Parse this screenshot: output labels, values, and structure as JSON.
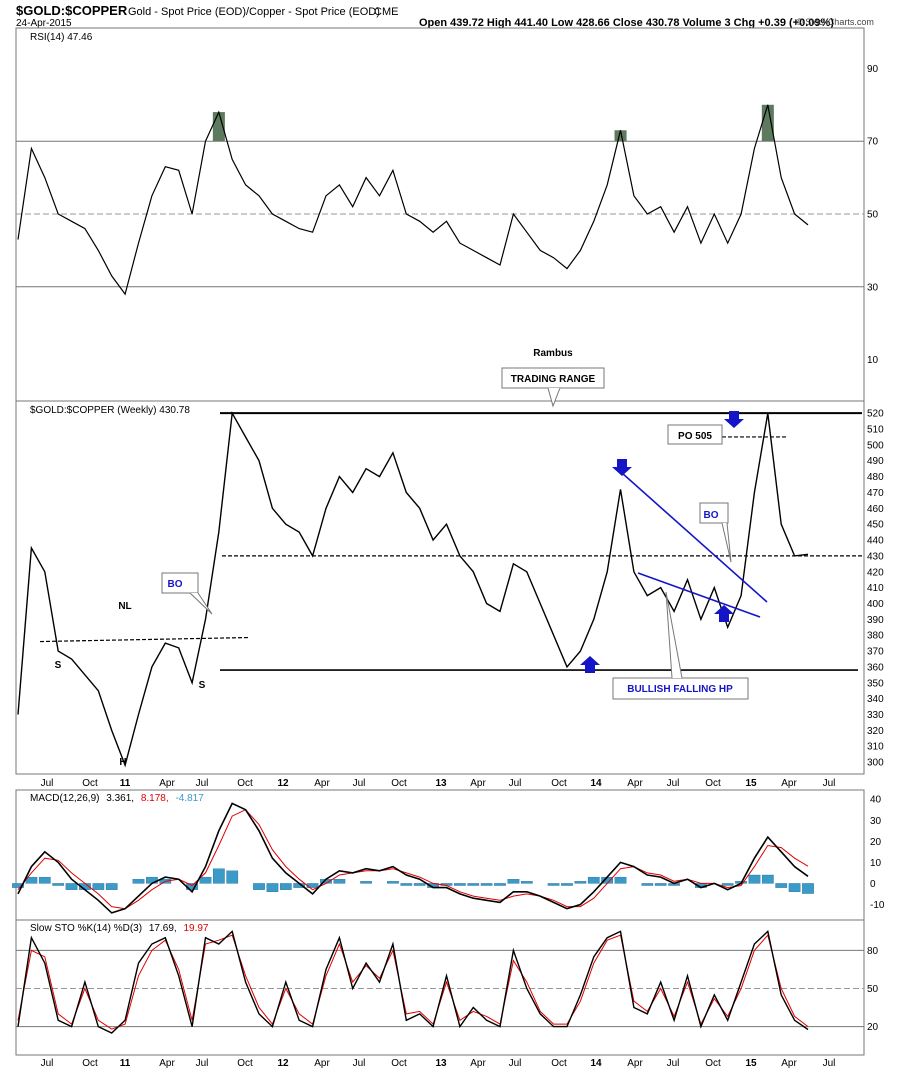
{
  "header": {
    "symbol": "$GOLD:$COPPER",
    "description": "Gold - Spot Price (EOD)/Copper - Spot Price (EOD)",
    "exchange": "CME",
    "date": "24-Apr-2015",
    "ohlc": "Open 439.72 High 441.40 Low 428.66 Close 430.78 Volume 3 Chg +0.39 (+0.09%)",
    "chg_arrow": "▲",
    "copyright": "© StockCharts.com"
  },
  "rsi_panel": {
    "label": "RSI(14) 47.46",
    "ticks": [
      "90",
      "70",
      "50",
      "30",
      "10"
    ],
    "overbought": 70,
    "oversold": 30,
    "midline": 50,
    "watermark": "Rambus"
  },
  "price_panel": {
    "label": "$GOLD:$COPPER (Weekly) 430.78",
    "ticks": [
      "520",
      "510",
      "500",
      "490",
      "480",
      "470",
      "460",
      "450",
      "440",
      "430",
      "420",
      "410",
      "400",
      "390",
      "380",
      "370",
      "360",
      "350",
      "340",
      "330",
      "320",
      "310",
      "300"
    ],
    "resistance": 520,
    "support": 358,
    "range_mid": 430
  },
  "macd_panel": {
    "label": "MACD(12,26,9)",
    "v1": "3.361,",
    "v2": "8.178,",
    "v3": "-4.817",
    "ticks": [
      "40",
      "30",
      "20",
      "10",
      "0",
      "-10"
    ]
  },
  "sto_panel": {
    "label": "Slow STO %K(14) %D(3)",
    "v1": "17.69,",
    "v2": "19.97",
    "ticks": [
      "80",
      "50",
      "20"
    ]
  },
  "x_axis_labels": [
    "Jul",
    "Oct",
    "11",
    "Apr",
    "Jul",
    "Oct",
    "12",
    "Apr",
    "Jul",
    "Oct",
    "13",
    "Apr",
    "Jul",
    "Oct",
    "14",
    "Apr",
    "Jul",
    "Oct",
    "15",
    "Apr",
    "Jul"
  ],
  "annotations": {
    "trading_range": "TRADING RANGE",
    "po": "PO 505",
    "bo_left": "BO",
    "bo_right": "BO",
    "nl": "NL",
    "s_left": "S",
    "s_right": "S",
    "h": "H",
    "bullish": "BULLISH FALLING HP"
  },
  "colors": {
    "price_line": "#000000",
    "signal_line": "#e00000",
    "histogram": "#3a9ac8",
    "rsi_fill": "#5e7a5e",
    "annotation_blue": "#1515c8",
    "grid": "#9a9a9a"
  },
  "chart_data": [
    {
      "type": "line",
      "series": [
        {
          "name": "$GOLD:$COPPER",
          "x": [
            "2010-05",
            "2010-06",
            "2010-07",
            "2010-08",
            "2010-09",
            "2010-10",
            "2010-11",
            "2010-12",
            "2011-01",
            "2011-02",
            "2011-03",
            "2011-04",
            "2011-05",
            "2011-06",
            "2011-07",
            "2011-08",
            "2011-09",
            "2011-10",
            "2011-11",
            "2011-12",
            "2012-01",
            "2012-02",
            "2012-03",
            "2012-04",
            "2012-05",
            "2012-06",
            "2012-07",
            "2012-08",
            "2012-09",
            "2012-10",
            "2012-11",
            "2012-12",
            "2013-01",
            "2013-02",
            "2013-03",
            "2013-04",
            "2013-05",
            "2013-06",
            "2013-07",
            "2013-08",
            "2013-09",
            "2013-10",
            "2013-11",
            "2013-12",
            "2014-01",
            "2014-02",
            "2014-03",
            "2014-04",
            "2014-05",
            "2014-06",
            "2014-07",
            "2014-08",
            "2014-09",
            "2014-10",
            "2014-11",
            "2014-12",
            "2015-01",
            "2015-02",
            "2015-03",
            "2015-04"
          ],
          "values": [
            330,
            435,
            420,
            370,
            365,
            355,
            345,
            320,
            298,
            330,
            360,
            375,
            372,
            350,
            390,
            445,
            520,
            505,
            490,
            460,
            450,
            445,
            430,
            460,
            480,
            470,
            485,
            480,
            495,
            470,
            460,
            440,
            450,
            430,
            420,
            400,
            395,
            425,
            420,
            400,
            380,
            360,
            370,
            390,
            420,
            472,
            420,
            405,
            410,
            395,
            415,
            390,
            410,
            385,
            405,
            470,
            520,
            450,
            430,
            431
          ]
        }
      ],
      "ylim": [
        295,
        522
      ],
      "ticks": [
        520,
        510,
        500,
        490,
        480,
        470,
        460,
        450,
        440,
        430,
        420,
        410,
        400,
        390,
        380,
        370,
        360,
        350,
        340,
        330,
        320,
        310,
        300
      ]
    },
    {
      "type": "line",
      "series": [
        {
          "name": "RSI(14)",
          "values": [
            43,
            68,
            60,
            50,
            48,
            46,
            40,
            33,
            28,
            42,
            55,
            63,
            62,
            50,
            70,
            78,
            65,
            58,
            55,
            50,
            48,
            46,
            45,
            55,
            58,
            52,
            60,
            55,
            62,
            50,
            48,
            45,
            48,
            42,
            40,
            38,
            36,
            50,
            45,
            40,
            38,
            35,
            40,
            48,
            58,
            73,
            55,
            50,
            52,
            45,
            52,
            42,
            50,
            42,
            50,
            68,
            80,
            60,
            50,
            47
          ]
        }
      ],
      "ylim": [
        0,
        100
      ],
      "ticks": [
        90,
        70,
        50,
        30,
        10
      ]
    },
    {
      "type": "line",
      "series": [
        {
          "name": "MACD",
          "values": [
            -5,
            8,
            15,
            10,
            2,
            -3,
            -8,
            -14,
            -12,
            -6,
            0,
            3,
            2,
            -4,
            8,
            25,
            38,
            35,
            25,
            12,
            5,
            0,
            -5,
            2,
            6,
            5,
            7,
            6,
            8,
            4,
            2,
            -2,
            -2,
            -5,
            -7,
            -8,
            -9,
            -4,
            -4,
            -6,
            -9,
            -12,
            -10,
            -4,
            3,
            10,
            8,
            4,
            3,
            0,
            2,
            -2,
            0,
            -3,
            0,
            12,
            22,
            15,
            8,
            3.361
          ]
        },
        {
          "name": "Signal",
          "values": [
            -3,
            5,
            12,
            11,
            5,
            0,
            -5,
            -11,
            -12,
            -8,
            -3,
            1,
            2,
            -1,
            5,
            18,
            32,
            35,
            28,
            16,
            8,
            2,
            -3,
            0,
            4,
            5,
            6,
            6,
            7,
            5,
            3,
            0,
            -1,
            -4,
            -6,
            -7,
            -8,
            -6,
            -5,
            -6,
            -8,
            -11,
            -11,
            -7,
            0,
            7,
            8,
            5,
            4,
            1,
            2,
            0,
            0,
            -2,
            -1,
            8,
            18,
            17,
            12,
            8.178
          ]
        }
      ],
      "histogram": [
        -2,
        3,
        3,
        -1,
        -3,
        -3,
        -3,
        -3,
        0,
        2,
        3,
        2,
        0,
        -3,
        3,
        7,
        6,
        0,
        -3,
        -4,
        -3,
        -2,
        -2,
        2,
        2,
        0,
        1,
        0,
        1,
        -1,
        -1,
        -2,
        -1,
        -1,
        -1,
        -1,
        -1,
        2,
        1,
        0,
        -1,
        -1,
        1,
        3,
        3,
        3,
        0,
        -1,
        -1,
        -1,
        0,
        -2,
        0,
        -1,
        1,
        4,
        4,
        -2,
        -4,
        -4.817
      ],
      "ylim": [
        -15,
        42
      ],
      "ticks": [
        40,
        30,
        20,
        10,
        0,
        -10
      ]
    },
    {
      "type": "line",
      "series": [
        {
          "name": "%K",
          "values": [
            20,
            90,
            70,
            25,
            20,
            55,
            20,
            15,
            25,
            70,
            85,
            90,
            60,
            20,
            90,
            85,
            95,
            55,
            30,
            20,
            55,
            25,
            20,
            65,
            90,
            50,
            70,
            55,
            85,
            25,
            30,
            20,
            60,
            20,
            35,
            25,
            20,
            80,
            50,
            30,
            20,
            20,
            45,
            75,
            90,
            95,
            35,
            30,
            55,
            25,
            60,
            20,
            45,
            25,
            55,
            85,
            95,
            45,
            25,
            17.69
          ]
        },
        {
          "name": "%D",
          "values": [
            25,
            80,
            75,
            30,
            22,
            50,
            25,
            18,
            22,
            60,
            80,
            88,
            65,
            25,
            85,
            88,
            92,
            60,
            35,
            22,
            50,
            30,
            22,
            60,
            85,
            55,
            68,
            58,
            80,
            30,
            32,
            22,
            55,
            25,
            32,
            28,
            22,
            72,
            55,
            32,
            22,
            22,
            40,
            70,
            88,
            92,
            40,
            32,
            50,
            28,
            55,
            22,
            42,
            28,
            50,
            80,
            92,
            50,
            28,
            19.97
          ]
        }
      ],
      "ylim": [
        0,
        100
      ],
      "ticks": [
        80,
        50,
        20
      ]
    }
  ]
}
